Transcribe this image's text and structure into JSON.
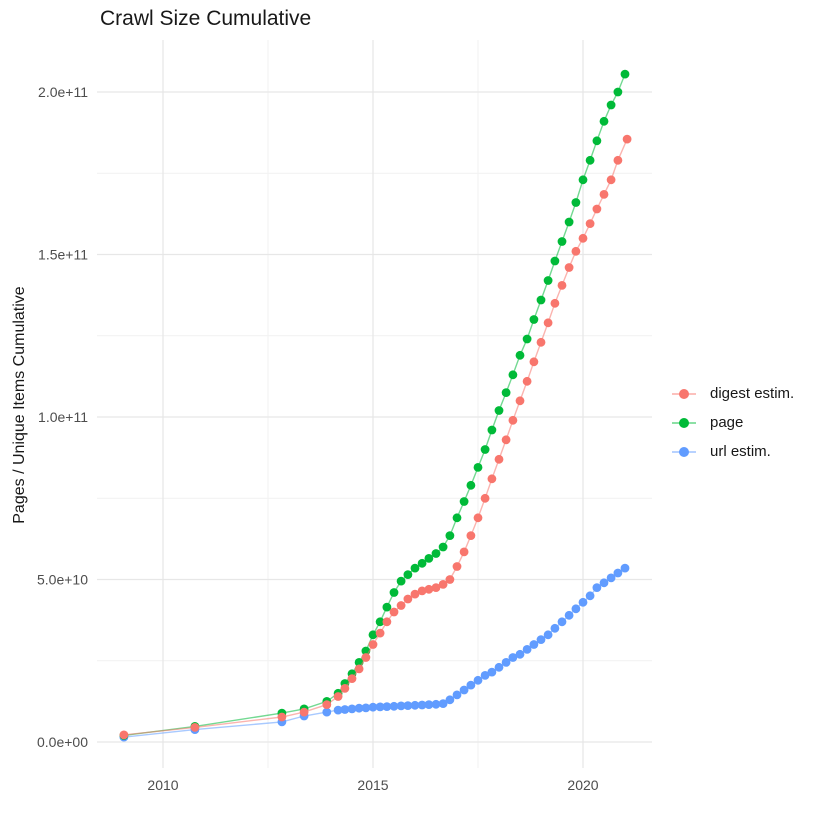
{
  "title": "Crawl Size Cumulative",
  "y_axis": {
    "label": "Pages / Unique Items Cumulative",
    "ticks": [
      {
        "label": "0.0e+00",
        "value": 0
      },
      {
        "label": "5.0e+10",
        "value": 5
      },
      {
        "label": "1.0e+11",
        "value": 10
      },
      {
        "label": "1.5e+11",
        "value": 15
      },
      {
        "label": "2.0e+11",
        "value": 20
      }
    ],
    "minor": [
      2.5,
      7.5,
      12.5,
      17.5
    ]
  },
  "x_axis": {
    "ticks": [
      {
        "label": "2010",
        "value": 2010
      },
      {
        "label": "2015",
        "value": 2015
      },
      {
        "label": "2020",
        "value": 2020
      }
    ],
    "minor": [
      2012.5,
      2017.5
    ]
  },
  "legend": {
    "items": [
      {
        "label": "digest estim.",
        "color": "#F8766D"
      },
      {
        "label": "page",
        "color": "#00BA38"
      },
      {
        "label": "url estim.",
        "color": "#619CFF"
      }
    ]
  },
  "colors": {
    "major_grid": "#E7E7E7",
    "minor_grid": "#F1F1F1",
    "tick_text": "#4D4D4D"
  },
  "chart_data": {
    "type": "scatter",
    "title": "Crawl Size Cumulative",
    "xlabel": "",
    "ylabel": "Pages / Unique Items Cumulative",
    "value_unit": "1e10 pages / unique items",
    "xlim": [
      2008.4,
      2021.6
    ],
    "ylim": [
      -0.8,
      21.6
    ],
    "grid": true,
    "legend_position": "right",
    "render_order": [
      "url estim.",
      "page",
      "digest estim."
    ],
    "series": [
      {
        "name": "digest estim.",
        "color": "#F8766D",
        "points": [
          [
            2009.07,
            0.22
          ],
          [
            2010.76,
            0.45
          ],
          [
            2012.83,
            0.77
          ],
          [
            2013.36,
            0.92
          ],
          [
            2013.9,
            1.15
          ],
          [
            2014.17,
            1.4
          ],
          [
            2014.33,
            1.65
          ],
          [
            2014.5,
            1.95
          ],
          [
            2014.67,
            2.25
          ],
          [
            2014.83,
            2.6
          ],
          [
            2015.0,
            3.0
          ],
          [
            2015.17,
            3.35
          ],
          [
            2015.33,
            3.7
          ],
          [
            2015.5,
            4.0
          ],
          [
            2015.67,
            4.2
          ],
          [
            2015.83,
            4.4
          ],
          [
            2016.0,
            4.55
          ],
          [
            2016.17,
            4.65
          ],
          [
            2016.33,
            4.7
          ],
          [
            2016.5,
            4.75
          ],
          [
            2016.67,
            4.85
          ],
          [
            2016.83,
            5.0
          ],
          [
            2017.0,
            5.4
          ],
          [
            2017.17,
            5.85
          ],
          [
            2017.33,
            6.35
          ],
          [
            2017.5,
            6.9
          ],
          [
            2017.67,
            7.5
          ],
          [
            2017.83,
            8.1
          ],
          [
            2018.0,
            8.7
          ],
          [
            2018.17,
            9.3
          ],
          [
            2018.33,
            9.9
          ],
          [
            2018.5,
            10.5
          ],
          [
            2018.67,
            11.1
          ],
          [
            2018.83,
            11.7
          ],
          [
            2019.0,
            12.3
          ],
          [
            2019.17,
            12.9
          ],
          [
            2019.33,
            13.5
          ],
          [
            2019.5,
            14.05
          ],
          [
            2019.67,
            14.6
          ],
          [
            2019.83,
            15.1
          ],
          [
            2020.0,
            15.5
          ],
          [
            2020.17,
            15.95
          ],
          [
            2020.33,
            16.4
          ],
          [
            2020.5,
            16.85
          ],
          [
            2020.67,
            17.3
          ],
          [
            2020.83,
            17.9
          ],
          [
            2021.05,
            18.55
          ]
        ]
      },
      {
        "name": "page",
        "color": "#00BA38",
        "points": [
          [
            2009.07,
            0.2
          ],
          [
            2010.76,
            0.48
          ],
          [
            2012.83,
            0.89
          ],
          [
            2013.36,
            1.02
          ],
          [
            2013.9,
            1.25
          ],
          [
            2014.17,
            1.5
          ],
          [
            2014.33,
            1.8
          ],
          [
            2014.5,
            2.1
          ],
          [
            2014.67,
            2.45
          ],
          [
            2014.83,
            2.8
          ],
          [
            2015.0,
            3.3
          ],
          [
            2015.17,
            3.7
          ],
          [
            2015.33,
            4.15
          ],
          [
            2015.5,
            4.6
          ],
          [
            2015.67,
            4.95
          ],
          [
            2015.83,
            5.15
          ],
          [
            2016.0,
            5.35
          ],
          [
            2016.17,
            5.5
          ],
          [
            2016.33,
            5.65
          ],
          [
            2016.5,
            5.8
          ],
          [
            2016.67,
            6.0
          ],
          [
            2016.83,
            6.35
          ],
          [
            2017.0,
            6.9
          ],
          [
            2017.17,
            7.4
          ],
          [
            2017.33,
            7.9
          ],
          [
            2017.5,
            8.45
          ],
          [
            2017.67,
            9.0
          ],
          [
            2017.83,
            9.6
          ],
          [
            2018.0,
            10.2
          ],
          [
            2018.17,
            10.75
          ],
          [
            2018.33,
            11.3
          ],
          [
            2018.5,
            11.9
          ],
          [
            2018.67,
            12.4
          ],
          [
            2018.83,
            13.0
          ],
          [
            2019.0,
            13.6
          ],
          [
            2019.17,
            14.2
          ],
          [
            2019.33,
            14.8
          ],
          [
            2019.5,
            15.4
          ],
          [
            2019.67,
            16.0
          ],
          [
            2019.83,
            16.6
          ],
          [
            2020.0,
            17.3
          ],
          [
            2020.17,
            17.9
          ],
          [
            2020.33,
            18.5
          ],
          [
            2020.5,
            19.1
          ],
          [
            2020.67,
            19.6
          ],
          [
            2020.83,
            20.0
          ],
          [
            2021.0,
            20.55
          ]
        ]
      },
      {
        "name": "url estim.",
        "color": "#619CFF",
        "points": [
          [
            2009.07,
            0.15
          ],
          [
            2010.76,
            0.38
          ],
          [
            2012.83,
            0.62
          ],
          [
            2013.36,
            0.8
          ],
          [
            2013.9,
            0.92
          ],
          [
            2014.17,
            0.98
          ],
          [
            2014.33,
            1.0
          ],
          [
            2014.5,
            1.02
          ],
          [
            2014.67,
            1.04
          ],
          [
            2014.83,
            1.05
          ],
          [
            2015.0,
            1.07
          ],
          [
            2015.17,
            1.08
          ],
          [
            2015.33,
            1.09
          ],
          [
            2015.5,
            1.1
          ],
          [
            2015.67,
            1.11
          ],
          [
            2015.83,
            1.12
          ],
          [
            2016.0,
            1.13
          ],
          [
            2016.17,
            1.14
          ],
          [
            2016.33,
            1.15
          ],
          [
            2016.5,
            1.16
          ],
          [
            2016.67,
            1.18
          ],
          [
            2016.83,
            1.3
          ],
          [
            2017.0,
            1.45
          ],
          [
            2017.17,
            1.6
          ],
          [
            2017.33,
            1.75
          ],
          [
            2017.5,
            1.9
          ],
          [
            2017.67,
            2.05
          ],
          [
            2017.83,
            2.15
          ],
          [
            2018.0,
            2.3
          ],
          [
            2018.17,
            2.45
          ],
          [
            2018.33,
            2.6
          ],
          [
            2018.5,
            2.7
          ],
          [
            2018.67,
            2.85
          ],
          [
            2018.83,
            3.0
          ],
          [
            2019.0,
            3.15
          ],
          [
            2019.17,
            3.3
          ],
          [
            2019.33,
            3.5
          ],
          [
            2019.5,
            3.7
          ],
          [
            2019.67,
            3.9
          ],
          [
            2019.83,
            4.1
          ],
          [
            2020.0,
            4.3
          ],
          [
            2020.17,
            4.5
          ],
          [
            2020.33,
            4.75
          ],
          [
            2020.5,
            4.9
          ],
          [
            2020.67,
            5.05
          ],
          [
            2020.83,
            5.2
          ],
          [
            2021.0,
            5.35
          ]
        ]
      }
    ]
  }
}
